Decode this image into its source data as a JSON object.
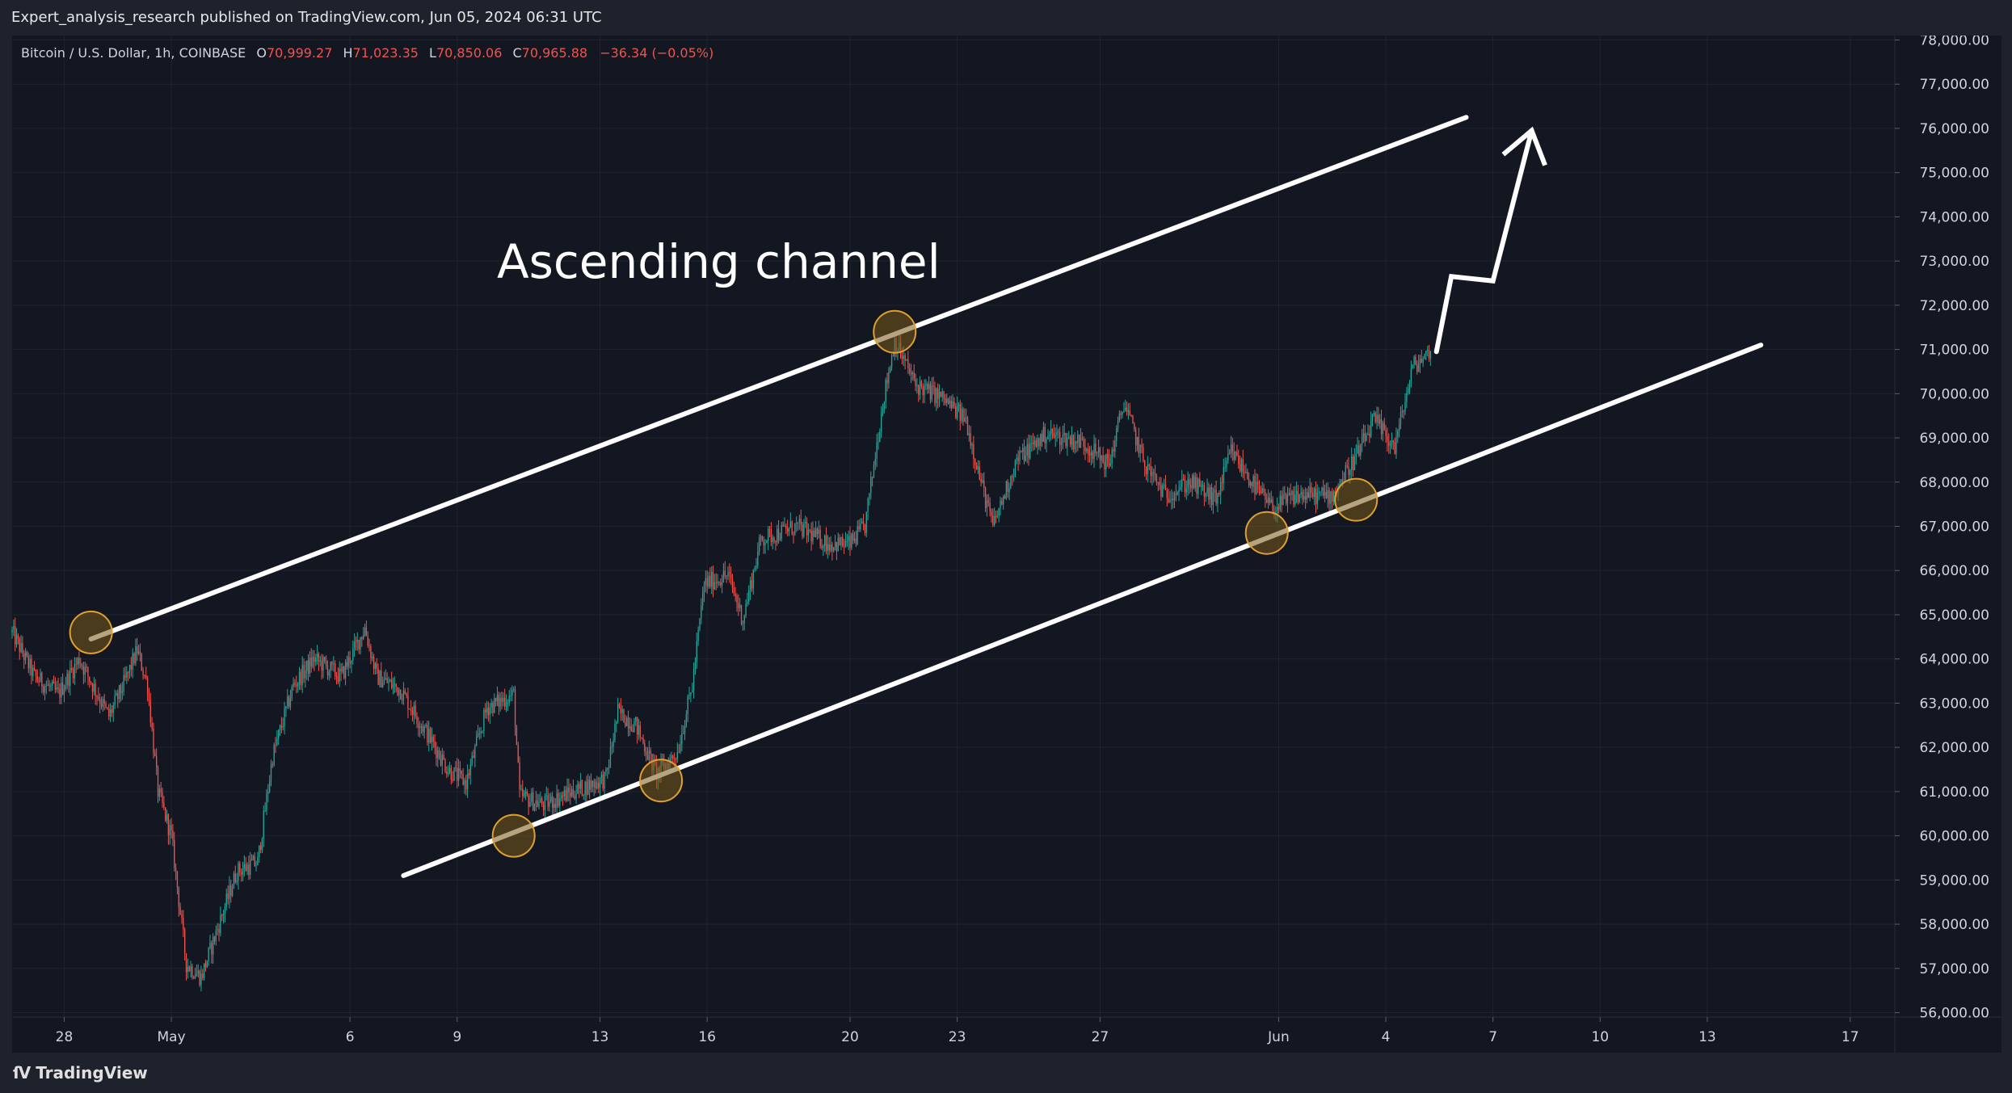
{
  "header": {
    "published": "Expert_analysis_research published on TradingView.com, Jun 05, 2024 06:31 UTC"
  },
  "footer": {
    "brand": "TradingView",
    "logo_icon": "tradingview-logo-icon"
  },
  "colors": {
    "background": "#131722",
    "frame": "#1e222d",
    "up": "#26a69a",
    "down": "#ef5350",
    "annotation": "#ffffff",
    "circle_fill": "#7a5a1a",
    "circle_stroke": "#e0a030",
    "text": "#d1d4dc"
  },
  "chart_data": {
    "type": "candlestick",
    "symbol_info": {
      "name": "Bitcoin / U.S. Dollar, 1h, COINBASE",
      "O_label": "O",
      "O": "70,999.27",
      "H_label": "H",
      "H": "71,023.35",
      "L_label": "L",
      "L": "70,850.06",
      "C_label": "C",
      "C": "70,965.88",
      "change": "−36.34 (−0.05%)"
    },
    "y_ticks": [
      "78,000.00",
      "77,000.00",
      "76,000.00",
      "75,000.00",
      "74,000.00",
      "73,000.00",
      "72,000.00",
      "71,000.00",
      "70,000.00",
      "69,000.00",
      "68,000.00",
      "67,000.00",
      "66,000.00",
      "65,000.00",
      "64,000.00",
      "63,000.00",
      "62,000.00",
      "61,000.00",
      "60,000.00",
      "59,000.00",
      "58,000.00",
      "57,000.00",
      "56,000.00"
    ],
    "y_range": [
      55900,
      78100
    ],
    "x_range": [
      "2024-04-26T13:00",
      "2024-06-18T06:00"
    ],
    "x_ticks": [
      {
        "label": "28",
        "date": "2024-04-28T00:00"
      },
      {
        "label": "May",
        "date": "2024-05-01T00:00"
      },
      {
        "label": "6",
        "date": "2024-05-06T00:00"
      },
      {
        "label": "9",
        "date": "2024-05-09T00:00"
      },
      {
        "label": "13",
        "date": "2024-05-13T00:00"
      },
      {
        "label": "16",
        "date": "2024-05-16T00:00"
      },
      {
        "label": "20",
        "date": "2024-05-20T00:00"
      },
      {
        "label": "23",
        "date": "2024-05-23T00:00"
      },
      {
        "label": "27",
        "date": "2024-05-27T00:00"
      },
      {
        "label": "Jun",
        "date": "2024-06-01T00:00"
      },
      {
        "label": "4",
        "date": "2024-06-04T00:00"
      },
      {
        "label": "7",
        "date": "2024-06-07T00:00"
      },
      {
        "label": "10",
        "date": "2024-06-10T00:00"
      },
      {
        "label": "13",
        "date": "2024-06-13T00:00"
      },
      {
        "label": "17",
        "date": "2024-06-17T00:00"
      }
    ],
    "price_path": [
      [
        "2024-04-26T13:00",
        64600
      ],
      [
        "2024-04-27T04:00",
        63600
      ],
      [
        "2024-04-27T20:00",
        63200
      ],
      [
        "2024-04-28T10:00",
        64000
      ],
      [
        "2024-04-29T06:00",
        62700
      ],
      [
        "2024-04-29T17:00",
        63500
      ],
      [
        "2024-04-30T01:00",
        64200
      ],
      [
        "2024-04-30T08:00",
        63400
      ],
      [
        "2024-04-30T15:00",
        61000
      ],
      [
        "2024-05-01T00:00",
        60000
      ],
      [
        "2024-05-01T10:00",
        57100
      ],
      [
        "2024-05-01T20:00",
        56800
      ],
      [
        "2024-05-02T06:00",
        57800
      ],
      [
        "2024-05-02T20:00",
        59200
      ],
      [
        "2024-05-03T10:00",
        59400
      ],
      [
        "2024-05-03T20:00",
        61800
      ],
      [
        "2024-05-04T10:00",
        63400
      ],
      [
        "2024-05-05T00:00",
        64000
      ],
      [
        "2024-05-05T18:00",
        63600
      ],
      [
        "2024-05-06T10:00",
        64700
      ],
      [
        "2024-05-06T18:00",
        63600
      ],
      [
        "2024-05-07T10:00",
        63300
      ],
      [
        "2024-05-08T04:00",
        62300
      ],
      [
        "2024-05-08T18:00",
        61500
      ],
      [
        "2024-05-09T06:00",
        61200
      ],
      [
        "2024-05-09T20:00",
        62900
      ],
      [
        "2024-05-10T14:00",
        63200
      ],
      [
        "2024-05-10T18:00",
        60900
      ],
      [
        "2024-05-11T10:00",
        60700
      ],
      [
        "2024-05-12T06:00",
        61000
      ],
      [
        "2024-05-13T04:00",
        61300
      ],
      [
        "2024-05-13T12:00",
        62800
      ],
      [
        "2024-05-14T00:00",
        62500
      ],
      [
        "2024-05-14T14:00",
        61400
      ],
      [
        "2024-05-15T04:00",
        61900
      ],
      [
        "2024-05-15T14:00",
        63400
      ],
      [
        "2024-05-15T22:00",
        65700
      ],
      [
        "2024-05-16T14:00",
        65900
      ],
      [
        "2024-05-17T00:00",
        64900
      ],
      [
        "2024-05-17T12:00",
        66700
      ],
      [
        "2024-05-18T12:00",
        67000
      ],
      [
        "2024-05-19T10:00",
        66600
      ],
      [
        "2024-05-20T00:00",
        66600
      ],
      [
        "2024-05-20T10:00",
        67000
      ],
      [
        "2024-05-20T22:00",
        69800
      ],
      [
        "2024-05-21T06:00",
        71200
      ],
      [
        "2024-05-21T20:00",
        70200
      ],
      [
        "2024-05-22T14:00",
        69900
      ],
      [
        "2024-05-23T06:00",
        69400
      ],
      [
        "2024-05-23T16:00",
        68000
      ],
      [
        "2024-05-24T00:00",
        67000
      ],
      [
        "2024-05-24T16:00",
        68500
      ],
      [
        "2024-05-25T12:00",
        69100
      ],
      [
        "2024-05-26T12:00",
        68900
      ],
      [
        "2024-05-27T06:00",
        68400
      ],
      [
        "2024-05-27T16:00",
        69800
      ],
      [
        "2024-05-28T06:00",
        68400
      ],
      [
        "2024-05-28T20:00",
        67700
      ],
      [
        "2024-05-29T12:00",
        68000
      ],
      [
        "2024-05-30T06:00",
        67600
      ],
      [
        "2024-05-30T16:00",
        68700
      ],
      [
        "2024-05-31T10:00",
        67800
      ],
      [
        "2024-05-31T20:00",
        67400
      ],
      [
        "2024-06-01T12:00",
        67700
      ],
      [
        "2024-06-02T12:00",
        67700
      ],
      [
        "2024-06-03T06:00",
        68700
      ],
      [
        "2024-06-03T16:00",
        69400
      ],
      [
        "2024-06-04T06:00",
        68800
      ],
      [
        "2024-06-04T18:00",
        70600
      ],
      [
        "2024-06-05T06:00",
        70966
      ]
    ],
    "annotations": {
      "text": "Ascending channel",
      "upper_line": [
        [
          "2024-04-28T18:00",
          64450
        ],
        [
          "2024-06-06T06:00",
          76250
        ]
      ],
      "lower_line": [
        [
          "2024-05-07T12:00",
          59100
        ],
        [
          "2024-06-14T12:00",
          71100
        ]
      ],
      "touch_points": [
        [
          "2024-04-28T18:00",
          64600
        ],
        [
          "2024-05-10T14:00",
          60000
        ],
        [
          "2024-05-14T17:00",
          61250
        ],
        [
          "2024-05-21T06:00",
          71400
        ],
        [
          "2024-05-31T16:00",
          66850
        ],
        [
          "2024-06-03T04:00",
          67600
        ]
      ],
      "projection_path": [
        [
          "2024-06-05T10:00",
          70950
        ],
        [
          "2024-06-05T20:00",
          72650
        ],
        [
          "2024-06-07T00:00",
          72550
        ],
        [
          "2024-06-08T02:00",
          75950
        ]
      ]
    }
  }
}
